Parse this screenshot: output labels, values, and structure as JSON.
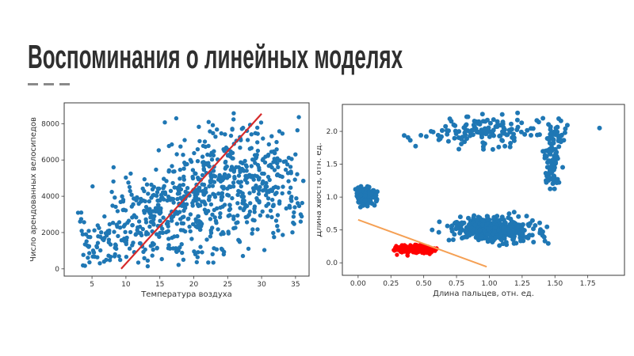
{
  "slide": {
    "title": "Воспоминания о линейных моделях",
    "title_color": "#2f2f2f",
    "dash_color": "#8a8a8a",
    "background": "#ffffff"
  },
  "chart_data": [
    {
      "id": "bike-temp",
      "type": "scatter",
      "xlabel": "Температура воздуха",
      "ylabel": "Число арендованных велосипедов",
      "xlim": [
        0.9,
        37.0
      ],
      "ylim": [
        -400,
        9150
      ],
      "xticks": [
        5,
        10,
        15,
        20,
        25,
        30,
        35
      ],
      "xtick_labels": [
        "5",
        "10",
        "15",
        "20",
        "25",
        "30",
        "35"
      ],
      "yticks": [
        0,
        2000,
        4000,
        6000,
        8000
      ],
      "ytick_labels": [
        "0",
        "2000",
        "4000",
        "6000",
        "8000"
      ],
      "grid": false,
      "legend": null,
      "point_color": "#1f77b4",
      "point_radius": 2.7,
      "seed": 11,
      "clip": {
        "x": [
          2.2,
          36.6
        ],
        "y": [
          60,
          8620
        ]
      },
      "clusters": [
        {
          "name": "scatter-temp-low",
          "n": 60,
          "cx": 6.0,
          "cy": 1400,
          "sx": 2.0,
          "sy": 750
        },
        {
          "name": "scatter-temp-9-14",
          "n": 120,
          "cx": 11.5,
          "cy": 2400,
          "sx": 2.4,
          "sy": 1250
        },
        {
          "name": "scatter-temp-14-19",
          "n": 150,
          "cx": 16.5,
          "cy": 3300,
          "sx": 2.4,
          "sy": 1600
        },
        {
          "name": "scatter-temp-19-24",
          "n": 170,
          "cx": 21.5,
          "cy": 4300,
          "sx": 2.5,
          "sy": 1800
        },
        {
          "name": "scatter-temp-24-28",
          "n": 160,
          "cx": 26.0,
          "cy": 5100,
          "sx": 2.5,
          "sy": 1850
        },
        {
          "name": "scatter-temp-28-33",
          "n": 110,
          "cx": 30.5,
          "cy": 4900,
          "sx": 2.0,
          "sy": 1600
        },
        {
          "name": "scatter-temp-high",
          "n": 45,
          "cx": 34.0,
          "cy": 4500,
          "sx": 1.5,
          "sy": 1300
        }
      ],
      "lines": [
        {
          "name": "linear-fit-line",
          "color": "#d62b2b",
          "width": 2.2,
          "points": [
            [
              9.3,
              0
            ],
            [
              30.0,
              8550
            ]
          ]
        }
      ]
    },
    {
      "id": "fingers-tail",
      "type": "scatter",
      "xlabel": "Длина пальцев, отн. ед.",
      "ylabel": "Длина хвоста, отн. ед.",
      "xlim": [
        -0.12,
        2.03
      ],
      "ylim": [
        -0.19,
        2.41
      ],
      "xticks": [
        0,
        0.25,
        0.5,
        0.75,
        1.0,
        1.25,
        1.5,
        1.75
      ],
      "xtick_labels": [
        "0.00",
        "0.25",
        "0.50",
        "0.75",
        "1.00",
        "1.25",
        "1.50",
        "1.75"
      ],
      "yticks": [
        0,
        0.5,
        1.0,
        1.5,
        2.0
      ],
      "ytick_labels": [
        "0.0",
        "0.5",
        "1.0",
        "1.5",
        "2.0"
      ],
      "grid": false,
      "legend": null,
      "point_color": "#1f77b4",
      "point_radius": 3.0,
      "seed": 23,
      "clusters": [
        {
          "name": "compact-blob-left",
          "color": "#1f77b4",
          "n": 130,
          "cx": 0.055,
          "cy": 1.01,
          "sx": 0.04,
          "sy": 0.075,
          "clip": [
            [
              -0.03,
              0.15
            ],
            [
              0.84,
              1.19
            ]
          ]
        },
        {
          "name": "red-cluster",
          "color": "#ff0000",
          "r": 2.6,
          "n": 230,
          "cx": 0.42,
          "cy": 0.2,
          "sx": 0.08,
          "sy": 0.033,
          "clip": [
            [
              0.265,
              0.6
            ],
            [
              0.1,
              0.3
            ]
          ]
        },
        {
          "name": "main-blue-cluster",
          "color": "#1f77b4",
          "n": 430,
          "cx": 1.02,
          "cy": 0.51,
          "sx": 0.15,
          "sy": 0.085,
          "tilt": -0.12,
          "clip": [
            [
              0.53,
              1.49
            ],
            [
              0.24,
              0.78
            ]
          ]
        },
        {
          "name": "top-band",
          "color": "#1f77b4",
          "n": 140,
          "cx": 0.97,
          "cy": 2.0,
          "sx": 0.27,
          "sy": 0.11,
          "clip": [
            [
              0.33,
              1.42
            ],
            [
              1.66,
              2.34
            ]
          ]
        },
        {
          "name": "top-right-cluster",
          "color": "#1f77b4",
          "n": 35,
          "cx": 1.5,
          "cy": 1.95,
          "sx": 0.05,
          "sy": 0.11,
          "clip": [
            [
              1.38,
              1.63
            ],
            [
              1.7,
              2.25
            ]
          ]
        },
        {
          "name": "right-vertical-cluster",
          "color": "#1f77b4",
          "n": 80,
          "cx": 1.47,
          "cy": 1.5,
          "sx": 0.032,
          "sy": 0.19,
          "clip": [
            [
              1.37,
              1.56
            ],
            [
              1.05,
              1.97
            ]
          ]
        },
        {
          "name": "outlier-point",
          "color": "#1f77b4",
          "n": 1,
          "cx": 1.84,
          "cy": 2.05,
          "sx": 0,
          "sy": 0
        }
      ],
      "lines": [
        {
          "name": "separating-line",
          "color": "#f5a054",
          "width": 2,
          "points": [
            [
              0.0,
              0.655
            ],
            [
              0.98,
              -0.06
            ]
          ]
        }
      ]
    }
  ]
}
